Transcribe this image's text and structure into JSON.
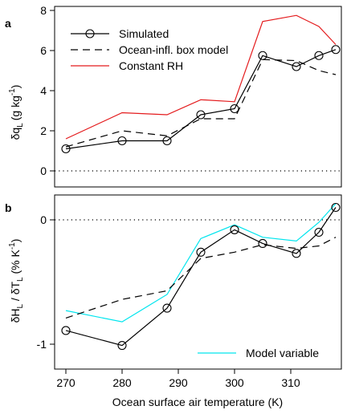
{
  "chart_data": [
    {
      "type": "line",
      "panel": "a",
      "x": [
        270,
        280,
        288,
        294,
        300,
        305,
        311,
        315,
        318
      ],
      "ylabel": "δq_L (g kg^-1)",
      "ylabel_main": "δq",
      "ylabel_sub": "L",
      "ylabel_unit": "(g kg",
      "ylabel_exp": "-1",
      "ylabel_close": ")",
      "xlim": [
        268,
        319
      ],
      "ylim": [
        -0.8,
        8.2
      ],
      "yticks": [
        0,
        2,
        4,
        6,
        8
      ],
      "reference_line": 0,
      "legend_position": "top-left",
      "series": [
        {
          "name": "Simulated",
          "style": "solid-circles",
          "color": "#000000",
          "values": [
            1.1,
            1.5,
            1.5,
            2.8,
            3.1,
            5.75,
            5.2,
            5.75,
            6.05
          ]
        },
        {
          "name": "Ocean-infl. box model",
          "style": "dashed",
          "color": "#000000",
          "values": [
            1.2,
            2.0,
            1.75,
            2.6,
            2.6,
            5.55,
            5.5,
            5.0,
            4.8
          ]
        },
        {
          "name": "Constant RH",
          "style": "solid",
          "color": "#e41a1c",
          "values": [
            1.6,
            2.9,
            2.8,
            3.55,
            3.45,
            7.45,
            7.75,
            7.2,
            6.3
          ]
        }
      ]
    },
    {
      "type": "line",
      "panel": "b",
      "x": [
        270,
        280,
        288,
        294,
        300,
        305,
        311,
        315,
        318
      ],
      "xlabel": "Ocean surface air temperature (K)",
      "ylabel": "δH_L / δT_L (% K^-1)",
      "ylabel_p1": "δH",
      "ylabel_sub1": "L",
      "ylabel_p2": " / δT",
      "ylabel_sub2": "L",
      "ylabel_p3": " (% K",
      "ylabel_exp": "-1",
      "ylabel_close": ")",
      "xlim": [
        268,
        319
      ],
      "ylim": [
        -1.2,
        0.2
      ],
      "yticks": [
        -1,
        0
      ],
      "xticks": [
        270,
        280,
        290,
        300,
        310
      ],
      "reference_line": 0,
      "legend_position": "bottom-right",
      "series": [
        {
          "name": "Simulated",
          "style": "solid-circles",
          "color": "#000000",
          "values": [
            -0.89,
            -1.01,
            -0.71,
            -0.26,
            -0.08,
            -0.19,
            -0.27,
            -0.1,
            0.1
          ]
        },
        {
          "name": "Ocean-infl. box model",
          "style": "dashed",
          "color": "#000000",
          "values": [
            -0.79,
            -0.64,
            -0.57,
            -0.31,
            -0.26,
            -0.2,
            -0.23,
            -0.21,
            -0.14
          ]
        },
        {
          "name": "Model variable",
          "style": "solid",
          "color": "#00e5ee",
          "values": [
            -0.73,
            -0.82,
            -0.6,
            -0.15,
            -0.04,
            -0.14,
            -0.17,
            -0.02,
            0.13
          ]
        }
      ]
    }
  ],
  "panel_a_letter": "a",
  "panel_b_letter": "b"
}
